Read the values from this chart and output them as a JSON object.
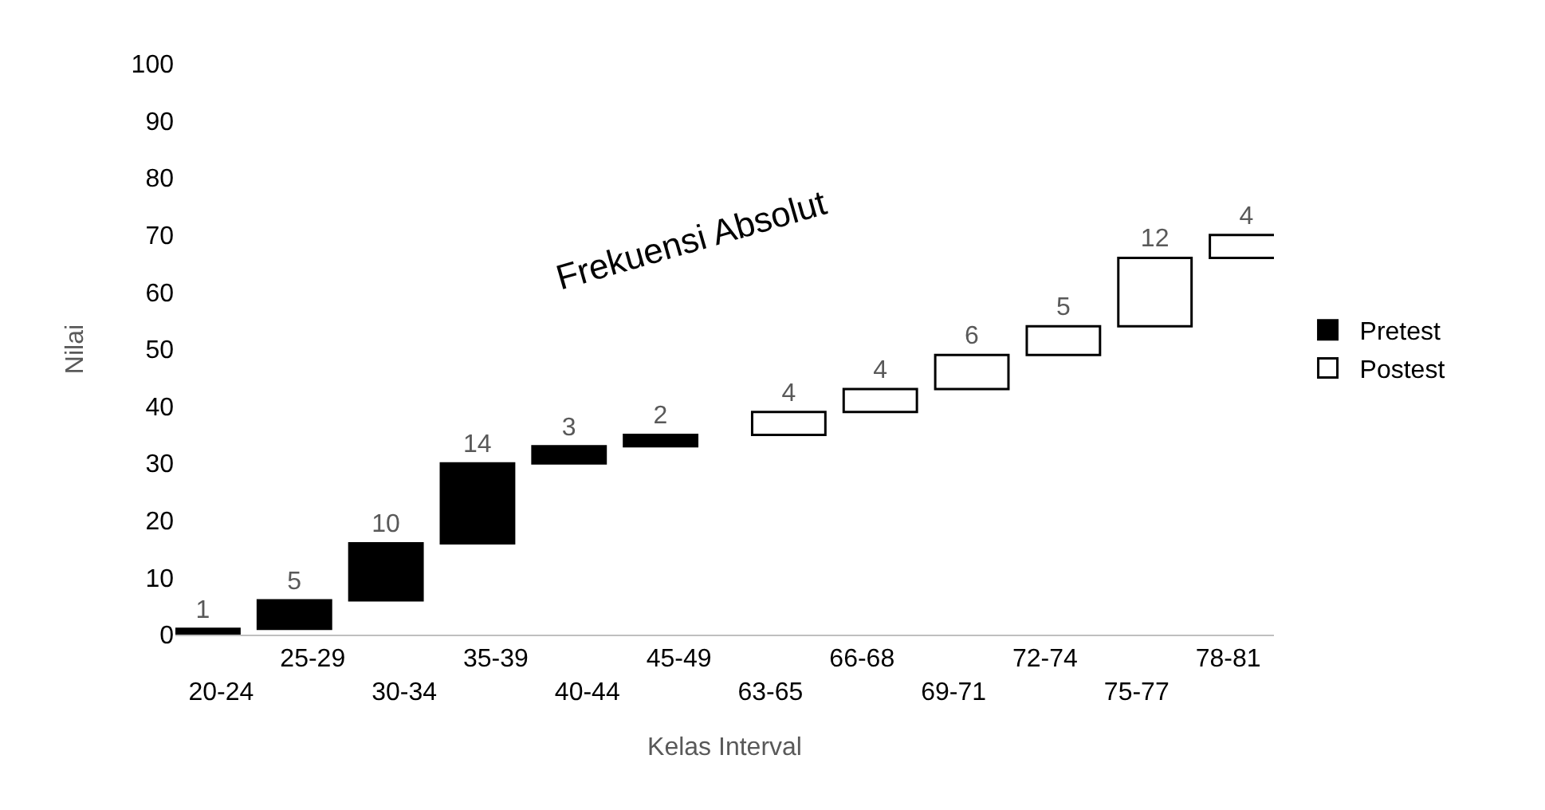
{
  "chart_data": {
    "type": "bar",
    "annotations": [
      "Frekuensi Absolut"
    ],
    "xlabel": "Kelas Interval",
    "ylabel": "Nilai",
    "categories": [
      "20-24",
      "25-29",
      "30-34",
      "35-39",
      "40-44",
      "45-49",
      "63-65",
      "66-68",
      "69-71",
      "72-74",
      "75-77",
      "78-81"
    ],
    "series": [
      {
        "name": "Pretest",
        "color": "#000000",
        "values": [
          1,
          5,
          10,
          14,
          3,
          2,
          null,
          null,
          null,
          null,
          null,
          null
        ],
        "base": [
          0,
          1,
          6,
          16,
          30,
          33,
          null,
          null,
          null,
          null,
          null,
          null
        ]
      },
      {
        "name": "Postest",
        "color": "#ffffff",
        "values": [
          null,
          null,
          null,
          null,
          null,
          null,
          4,
          4,
          6,
          5,
          12,
          4
        ],
        "base": [
          null,
          null,
          null,
          null,
          null,
          null,
          35,
          39,
          43,
          49,
          54,
          66
        ]
      }
    ],
    "ylim": [
      0,
      100
    ],
    "yticks": [
      0,
      10,
      20,
      30,
      40,
      50,
      60,
      70,
      80,
      90,
      100
    ],
    "grid": false,
    "legend": "right",
    "data_labels": true
  }
}
